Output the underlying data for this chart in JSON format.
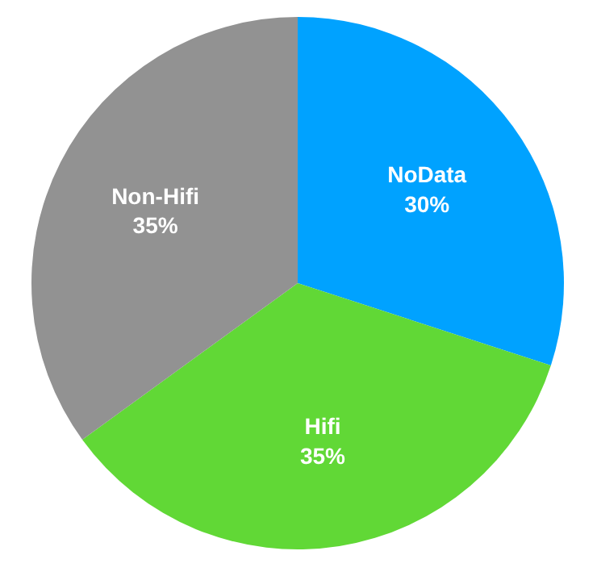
{
  "chart_data": {
    "type": "pie",
    "categories": [
      "NoData",
      "Hifi",
      "Non-Hifi"
    ],
    "values": [
      30,
      35,
      35
    ],
    "colors": [
      "#00a2ff",
      "#61d836",
      "#929292"
    ],
    "value_labels": [
      "30%",
      "35%",
      "35%"
    ]
  }
}
